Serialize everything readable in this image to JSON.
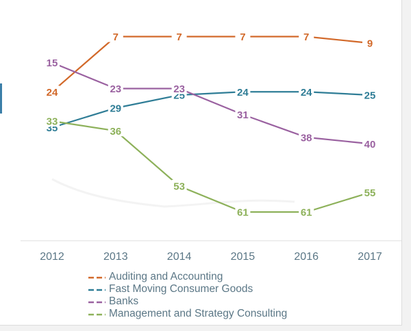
{
  "chart_data": {
    "type": "line",
    "x": [
      "2012",
      "2013",
      "2014",
      "2015",
      "2016",
      "2017"
    ],
    "y_inverted": true,
    "y_range": [
      5,
      62
    ],
    "grid": false,
    "legend_position": "bottom",
    "series": [
      {
        "name": "Auditing and Accounting",
        "color": "#d2692a",
        "values": [
          24,
          7,
          7,
          7,
          7,
          9
        ]
      },
      {
        "name": "Fast Moving Consumer Goods",
        "color": "#2f7d96",
        "values": [
          35,
          29,
          25,
          24,
          24,
          25
        ]
      },
      {
        "name": "Banks",
        "color": "#9a61a0",
        "values": [
          15,
          23,
          23,
          31,
          38,
          40
        ]
      },
      {
        "name": "Management and Strategy Consulting",
        "color": "#8db15a",
        "values": [
          33,
          36,
          53,
          61,
          61,
          55
        ]
      }
    ]
  }
}
